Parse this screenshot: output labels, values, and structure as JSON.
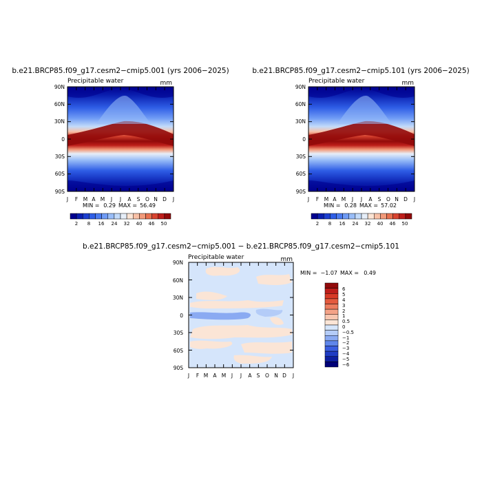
{
  "chart_data": [
    {
      "type": "heatmap",
      "title": "b.e21.BRCP85.f09_g17.cesm2−cmip5.001 (yrs 2006−2025)",
      "subtitle_left": "Precipitable water",
      "units": "mm",
      "x_tick_labels": [
        "J",
        "F",
        "M",
        "A",
        "M",
        "J",
        "J",
        "A",
        "S",
        "O",
        "N",
        "D",
        "J"
      ],
      "y_tick_labels": [
        "90N",
        "60N",
        "30N",
        "0",
        "30S",
        "60S",
        "90S"
      ],
      "stats": {
        "min_label": "MIN =",
        "min": "0.29",
        "max_label": "MAX =",
        "max": "56.49"
      },
      "colorbar": {
        "labels": [
          "2",
          "8",
          "16",
          "24",
          "32",
          "40",
          "46",
          "50"
        ],
        "colors": [
          "#00008f",
          "#0a1fb0",
          "#1c3fd0",
          "#2f5ee6",
          "#4b7bf0",
          "#6f9bf5",
          "#99bdf8",
          "#c3dbfa",
          "#e6eef8",
          "#fbe4d4",
          "#f8c0a6",
          "#f29a7a",
          "#e8704f",
          "#d84430",
          "#be1e1a",
          "#920a0a"
        ]
      }
    },
    {
      "type": "heatmap",
      "title": "b.e21.BRCP85.f09_g17.cesm2−cmip5.101 (yrs 2006−2025)",
      "subtitle_left": "Precipitable water",
      "units": "mm",
      "x_tick_labels": [
        "J",
        "F",
        "M",
        "A",
        "M",
        "J",
        "J",
        "A",
        "S",
        "O",
        "N",
        "D",
        "J"
      ],
      "y_tick_labels": [
        "90N",
        "60N",
        "30N",
        "0",
        "30S",
        "60S",
        "90S"
      ],
      "stats": {
        "min_label": "MIN =",
        "min": "0.28",
        "max_label": "MAX =",
        "max": "57.02"
      },
      "colorbar": {
        "labels": [
          "2",
          "8",
          "16",
          "24",
          "32",
          "40",
          "46",
          "50"
        ],
        "colors": [
          "#00008f",
          "#0a1fb0",
          "#1c3fd0",
          "#2f5ee6",
          "#4b7bf0",
          "#6f9bf5",
          "#99bdf8",
          "#c3dbfa",
          "#e6eef8",
          "#fbe4d4",
          "#f8c0a6",
          "#f29a7a",
          "#e8704f",
          "#d84430",
          "#be1e1a",
          "#920a0a"
        ]
      }
    },
    {
      "type": "heatmap",
      "title": "b.e21.BRCP85.f09_g17.cesm2−cmip5.001 − b.e21.BRCP85.f09_g17.cesm2−cmip5.101",
      "subtitle_left": "Precipitable water",
      "units": "mm",
      "x_tick_labels": [
        "J",
        "F",
        "M",
        "A",
        "M",
        "J",
        "J",
        "A",
        "S",
        "O",
        "N",
        "D",
        "J"
      ],
      "y_tick_labels": [
        "90N",
        "60N",
        "30N",
        "0",
        "30S",
        "60S",
        "90S"
      ],
      "stats": {
        "min_label": "MIN =",
        "min": "−1.07",
        "max_label": "MAX =",
        "max": "0.49"
      },
      "colorbar": {
        "labels": [
          "6",
          "5",
          "4",
          "3",
          "2",
          "1",
          "0.5",
          "0",
          "−0.5",
          "−1",
          "−2",
          "−3",
          "−4",
          "−5",
          "−6"
        ],
        "colors": [
          "#920a0a",
          "#be1e1a",
          "#d83a26",
          "#e45a3e",
          "#ec7c5e",
          "#f4a287",
          "#f8c6b0",
          "#fbe5d6",
          "#d5e5fb",
          "#b4ccf8",
          "#8aaaf2",
          "#5f86ea",
          "#3a5ee0",
          "#1f3cc4",
          "#0d1fa0",
          "#000078"
        ]
      }
    }
  ]
}
